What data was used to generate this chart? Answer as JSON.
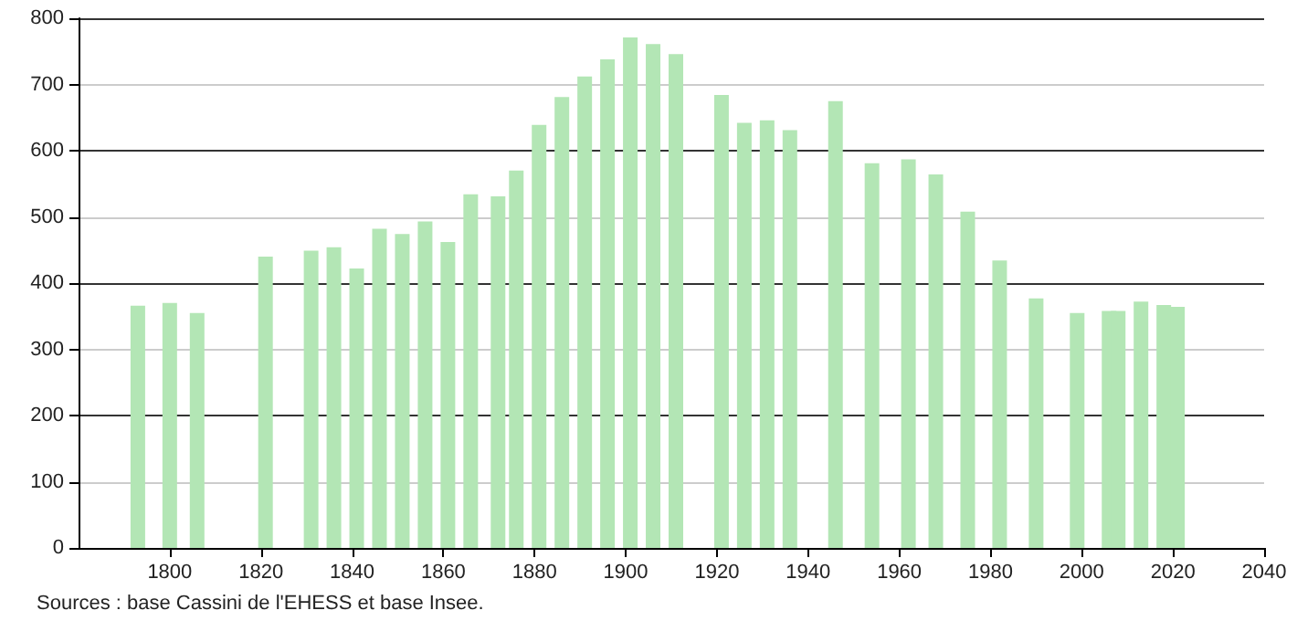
{
  "chart_data": {
    "type": "bar",
    "color": "#b3e6b5",
    "x": [
      1793,
      1800,
      1806,
      1821,
      1831,
      1836,
      1841,
      1846,
      1851,
      1856,
      1861,
      1866,
      1872,
      1876,
      1881,
      1886,
      1891,
      1896,
      1901,
      1906,
      1911,
      1921,
      1926,
      1931,
      1936,
      1946,
      1954,
      1962,
      1968,
      1975,
      1982,
      1990,
      1999,
      2006,
      2008,
      2013,
      2018,
      2021
    ],
    "values": [
      366,
      370,
      355,
      440,
      449,
      454,
      422,
      482,
      474,
      493,
      462,
      534,
      531,
      570,
      639,
      681,
      712,
      738,
      771,
      761,
      746,
      684,
      642,
      646,
      631,
      675,
      581,
      587,
      564,
      508,
      434,
      377,
      355,
      358,
      358,
      372,
      367,
      364
    ],
    "xlim": [
      1780,
      2040
    ],
    "xticks": [
      1800,
      1820,
      1840,
      1860,
      1880,
      1900,
      1920,
      1940,
      1960,
      1980,
      2000,
      2020,
      2040
    ],
    "ylim": [
      0,
      800
    ],
    "yticks": [
      0,
      100,
      200,
      300,
      400,
      500,
      600,
      700,
      800
    ],
    "grid": "y",
    "annotations": [
      "Sources : base Cassini de l'EHESS et base Insee."
    ]
  }
}
